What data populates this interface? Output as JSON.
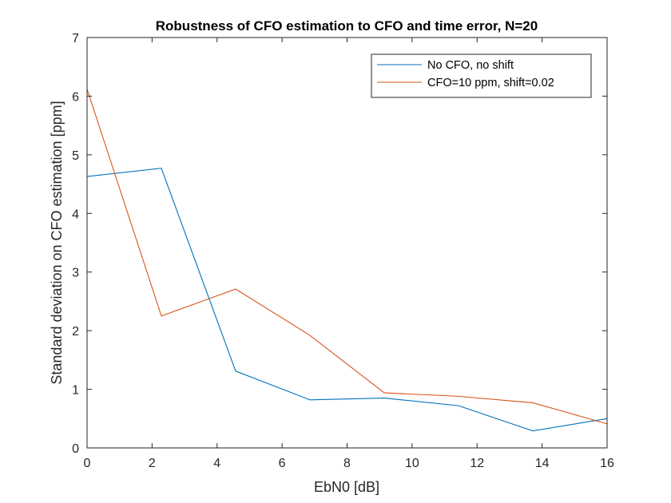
{
  "chart_data": {
    "type": "line",
    "title": "Robustness of CFO estimation to CFO and time error, N=20",
    "xlabel": "EbN0 [dB]",
    "ylabel": "Standard deviation on CFO estimation [ppm]",
    "xlim": [
      0,
      16
    ],
    "ylim": [
      0,
      7
    ],
    "xticks": [
      "0",
      "2",
      "4",
      "6",
      "8",
      "10",
      "12",
      "14",
      "16"
    ],
    "yticks": [
      "0",
      "1",
      "2",
      "3",
      "4",
      "5",
      "6",
      "7"
    ],
    "grid": false,
    "legend_position": "top-right",
    "series": [
      {
        "name": "No CFO, no shift",
        "color": "#0072BD",
        "x": [
          0,
          2.2857,
          4.5714,
          6.8571,
          9.1429,
          11.4286,
          13.7143,
          16
        ],
        "y": [
          4.63,
          4.77,
          1.31,
          0.82,
          0.85,
          0.72,
          0.29,
          0.5
        ]
      },
      {
        "name": "CFO=10 ppm, shift=0.02",
        "color": "#D95319",
        "x": [
          0,
          2.2857,
          4.5714,
          6.8571,
          9.1429,
          11.4286,
          13.7143,
          16
        ],
        "y": [
          6.12,
          2.25,
          2.71,
          1.92,
          0.94,
          0.88,
          0.77,
          0.41
        ]
      }
    ]
  }
}
